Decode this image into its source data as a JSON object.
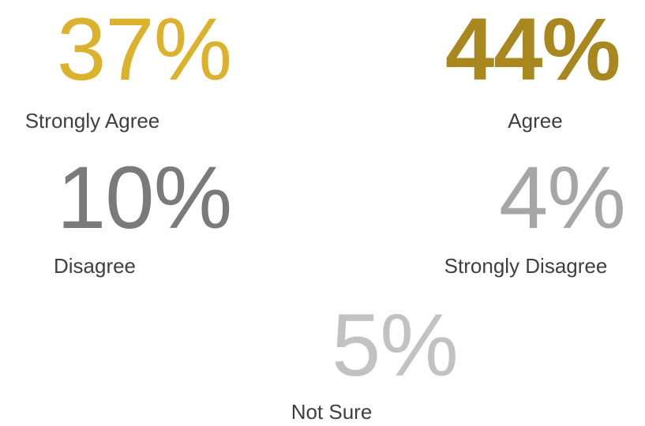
{
  "chart_data": {
    "type": "table",
    "items": [
      {
        "key": "strongly_agree",
        "label": "Strongly Agree",
        "value": 37,
        "display": "37%",
        "color": "#dcb12c",
        "bold": false
      },
      {
        "key": "agree",
        "label": "Agree",
        "value": 44,
        "display": "44%",
        "color": "#a8871f",
        "bold": true
      },
      {
        "key": "disagree",
        "label": "Disagree",
        "value": 10,
        "display": "10%",
        "color": "#7a7a7a",
        "bold": false
      },
      {
        "key": "strongly_disagree",
        "label": "Strongly Disagree",
        "value": 4,
        "display": "4%",
        "color": "#a6a6a6",
        "bold": false
      },
      {
        "key": "not_sure",
        "label": "Not Sure",
        "value": 5,
        "display": "5%",
        "color": "#c2c2c2",
        "bold": false
      }
    ]
  }
}
